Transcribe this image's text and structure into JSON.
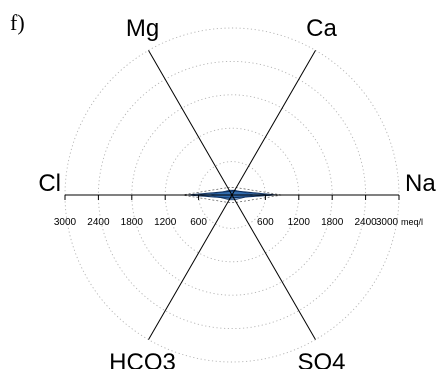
{
  "chart_data": {
    "type": "radar",
    "panel_label": "f)",
    "axes": [
      "Mg",
      "Ca",
      "Na",
      "SO4",
      "HCO3",
      "Cl"
    ],
    "radial_range": [
      0,
      3000
    ],
    "rings": [
      600,
      1200,
      1800,
      2400,
      3000
    ],
    "tick_labels_left": [
      "3000",
      "2400",
      "1800",
      "1200",
      "600"
    ],
    "tick_labels_right": [
      "600",
      "1200",
      "1800",
      "2400",
      "3000"
    ],
    "tick_unit": "meq/l",
    "grid": true,
    "series": [
      {
        "values": [
          100,
          100,
          400,
          100,
          100,
          400
        ],
        "color": "#1f5fa8"
      },
      {
        "values": [
          80,
          90,
          850,
          60,
          70,
          850
        ],
        "color": "#1f5fa8"
      },
      {
        "values": [
          70,
          80,
          700,
          50,
          60,
          700
        ],
        "color": "#1f5fa8"
      }
    ]
  }
}
